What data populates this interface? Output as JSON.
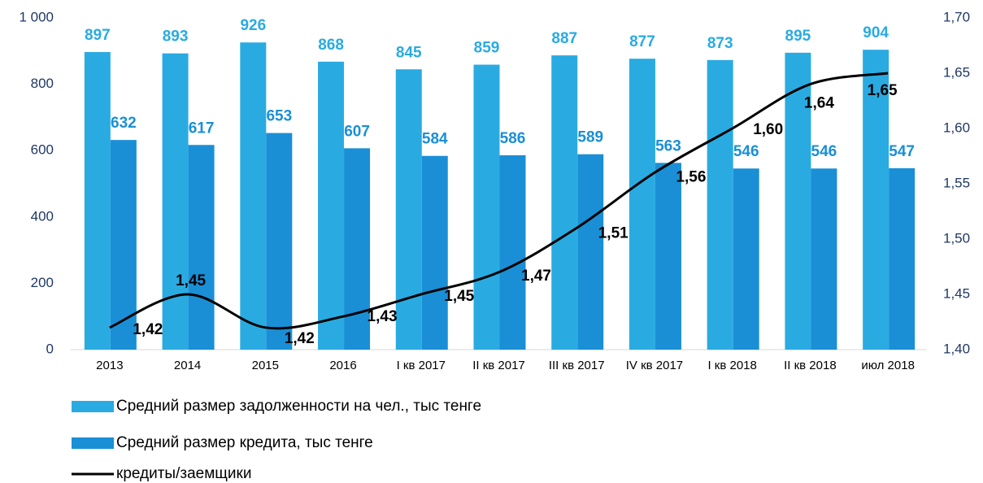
{
  "chart_data": {
    "type": "bar_line",
    "categories": [
      "2013",
      "2014",
      "2015",
      "2016",
      "I кв 2017",
      "II кв 2017",
      "III кв 2017",
      "IV кв 2017",
      "I кв 2018",
      "II кв 2018",
      "июл 2018"
    ],
    "series": [
      {
        "name": "Средний размер задолженности на чел., тыс тенге",
        "color": "#29abe2",
        "values": [
          897,
          893,
          926,
          868,
          845,
          859,
          887,
          877,
          873,
          895,
          904
        ]
      },
      {
        "name": "Средний размер кредита, тыс тенге",
        "color": "#1a8fd6",
        "values": [
          632,
          617,
          653,
          607,
          584,
          586,
          589,
          563,
          546,
          546,
          547
        ]
      },
      {
        "name": "кредиты/заемщики",
        "color": "#000000",
        "axis": "y2",
        "type": "line",
        "values": [
          1.42,
          1.45,
          1.42,
          1.43,
          1.45,
          1.47,
          1.51,
          1.56,
          1.6,
          1.64,
          1.65
        ],
        "value_labels": [
          "1,42",
          "1,45",
          "1,42",
          "1,43",
          "1,45",
          "1,47",
          "1,51",
          "1,56",
          "1,60",
          "1,64",
          "1,65"
        ]
      }
    ],
    "ylim": [
      0,
      1000
    ],
    "yticks": [
      0,
      200,
      400,
      600,
      800,
      {
        "value": 1000,
        "label": "1 000"
      }
    ],
    "y2lim": [
      1.4,
      1.7
    ],
    "y2ticks": [
      {
        "value": 1.4,
        "label": "1,40"
      },
      {
        "value": 1.45,
        "label": "1,45"
      },
      {
        "value": 1.5,
        "label": "1,50"
      },
      {
        "value": 1.55,
        "label": "1,55"
      },
      {
        "value": 1.6,
        "label": "1,60"
      },
      {
        "value": 1.65,
        "label": "1,65"
      },
      {
        "value": 1.7,
        "label": "1,70"
      }
    ],
    "legend": "bottom-left"
  }
}
